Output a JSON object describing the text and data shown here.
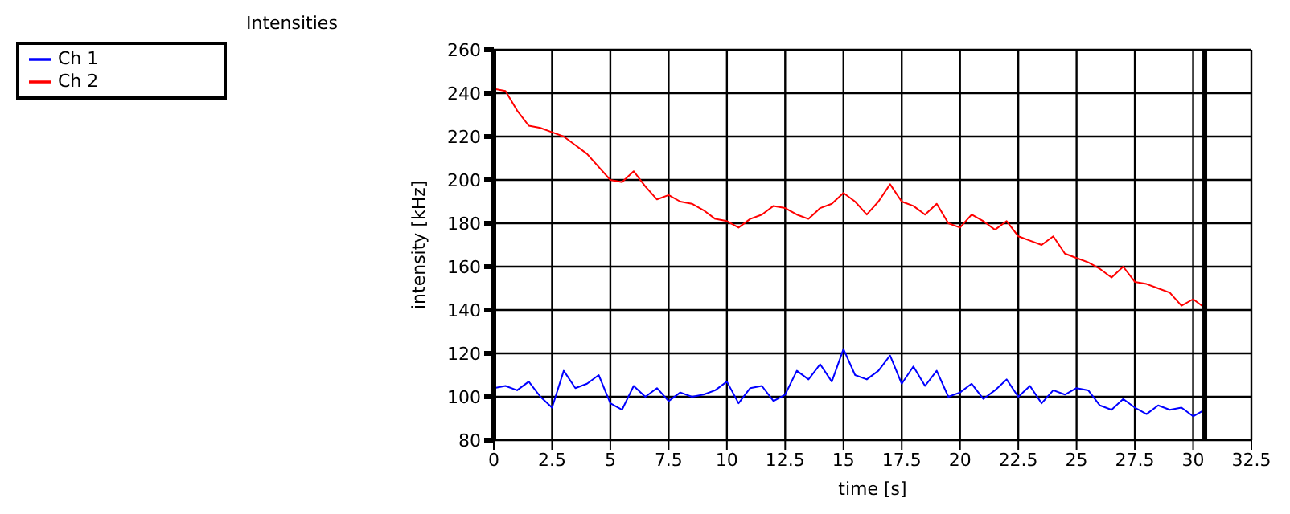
{
  "chart_data": {
    "type": "line",
    "title": "Intensities",
    "xlabel": "time [s]",
    "ylabel": "intensity [kHz]",
    "x": [
      0,
      0.5,
      1,
      1.5,
      2,
      2.5,
      3,
      3.5,
      4,
      4.5,
      5,
      5.5,
      6,
      6.5,
      7,
      7.5,
      8,
      8.5,
      9,
      9.5,
      10,
      10.5,
      11,
      11.5,
      12,
      12.5,
      13,
      13.5,
      14,
      14.5,
      15,
      15.5,
      16,
      16.5,
      17,
      17.5,
      18,
      18.5,
      19,
      19.5,
      20,
      20.5,
      21,
      21.5,
      22,
      22.5,
      23,
      23.5,
      24,
      24.5,
      25,
      25.5,
      26,
      26.5,
      27,
      27.5,
      28,
      28.5,
      29,
      29.5,
      30,
      30.5
    ],
    "series": [
      {
        "name": "Ch 1",
        "color": "#0000ff",
        "values": [
          104,
          105,
          103,
          107,
          100,
          95,
          112,
          104,
          106,
          110,
          97,
          94,
          105,
          100,
          104,
          98,
          102,
          100,
          101,
          103,
          107,
          97,
          104,
          105,
          98,
          101,
          112,
          108,
          115,
          107,
          122,
          110,
          108,
          112,
          119,
          106,
          114,
          105,
          112,
          100,
          102,
          106,
          99,
          103,
          108,
          100,
          105,
          97,
          103,
          101,
          104,
          103,
          96,
          94,
          99,
          95,
          92,
          96,
          94,
          95,
          91,
          94
        ]
      },
      {
        "name": "Ch 2",
        "color": "#ff0000",
        "values": [
          242,
          241,
          232,
          225,
          224,
          222,
          220,
          216,
          212,
          206,
          200,
          199,
          204,
          197,
          191,
          193,
          190,
          189,
          186,
          182,
          181,
          178,
          182,
          184,
          188,
          187,
          184,
          182,
          187,
          189,
          194,
          190,
          184,
          190,
          198,
          190,
          188,
          184,
          189,
          180,
          178,
          184,
          181,
          177,
          181,
          174,
          172,
          170,
          174,
          166,
          164,
          162,
          159,
          155,
          160,
          153,
          152,
          150,
          148,
          142,
          145,
          141
        ]
      }
    ],
    "xlim": [
      0,
      32.5
    ],
    "xticks": [
      0,
      2.5,
      5,
      7.5,
      10,
      12.5,
      15,
      17.5,
      20,
      22.5,
      25,
      27.5,
      30,
      32.5
    ],
    "ylim": [
      80,
      260
    ],
    "yticks": [
      80,
      100,
      120,
      140,
      160,
      180,
      200,
      220,
      240,
      260
    ],
    "ref_lines": [
      {
        "axis": "x",
        "value": 30.5,
        "color": "#000000"
      }
    ],
    "grid": true,
    "legend": "top left",
    "marker": "none",
    "line_style": "solid"
  }
}
